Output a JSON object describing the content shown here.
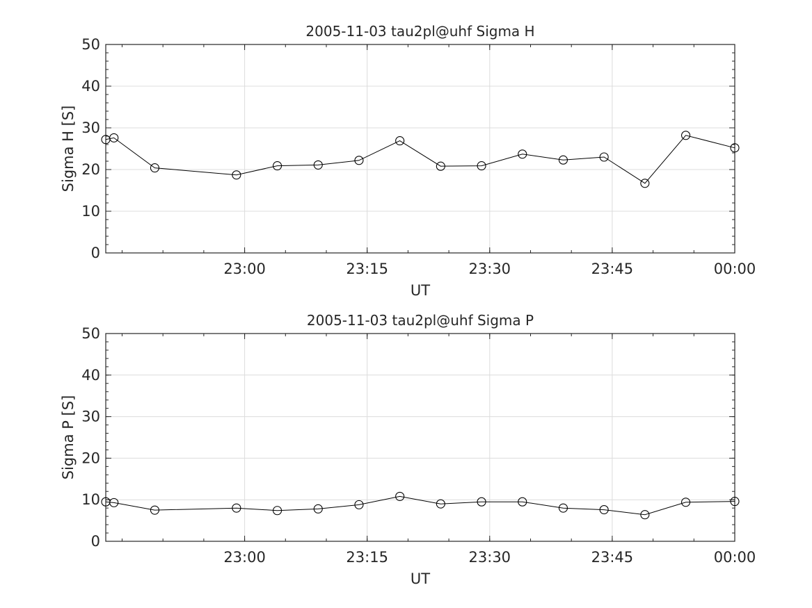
{
  "chart_data": [
    {
      "type": "line",
      "title": "2005-11-03  tau2pl@uhf Sigma H",
      "xlabel": "UT",
      "ylabel": "Sigma H [S]",
      "ylim": [
        0,
        50
      ],
      "yticks": [
        0,
        10,
        20,
        30,
        40,
        50
      ],
      "xlim": [
        "22:43",
        "00:00"
      ],
      "xticks": [
        "23:00",
        "23:15",
        "23:30",
        "23:45",
        "00:00"
      ],
      "grid": true,
      "x": [
        "22:43",
        "22:44",
        "22:49",
        "22:59",
        "23:04",
        "23:09",
        "23:14",
        "23:19",
        "23:24",
        "23:29",
        "23:34",
        "23:39",
        "23:44",
        "23:49",
        "23:54",
        "00:00"
      ],
      "series": [
        {
          "values": [
            27.2,
            27.6,
            20.4,
            18.7,
            20.9,
            21.1,
            22.2,
            26.9,
            20.8,
            20.9,
            23.7,
            22.3,
            23.0,
            16.7,
            28.2,
            25.2
          ],
          "color": "#000000"
        }
      ]
    },
    {
      "type": "line",
      "title": "2005-11-03  tau2pl@uhf Sigma P",
      "xlabel": "UT",
      "ylabel": "Sigma P [S]",
      "ylim": [
        0,
        50
      ],
      "yticks": [
        0,
        10,
        20,
        30,
        40,
        50
      ],
      "xlim": [
        "22:43",
        "00:00"
      ],
      "xticks": [
        "23:00",
        "23:15",
        "23:30",
        "23:45",
        "00:00"
      ],
      "grid": true,
      "x": [
        "22:43",
        "22:44",
        "22:49",
        "22:59",
        "23:04",
        "23:09",
        "23:14",
        "23:19",
        "23:24",
        "23:29",
        "23:34",
        "23:39",
        "23:44",
        "23:49",
        "23:54",
        "00:00"
      ],
      "series": [
        {
          "values": [
            9.5,
            9.3,
            7.5,
            8.0,
            7.4,
            7.8,
            8.8,
            10.8,
            9.0,
            9.5,
            9.5,
            8.0,
            7.6,
            6.4,
            9.4,
            9.6
          ],
          "color": "#000000"
        }
      ]
    }
  ]
}
